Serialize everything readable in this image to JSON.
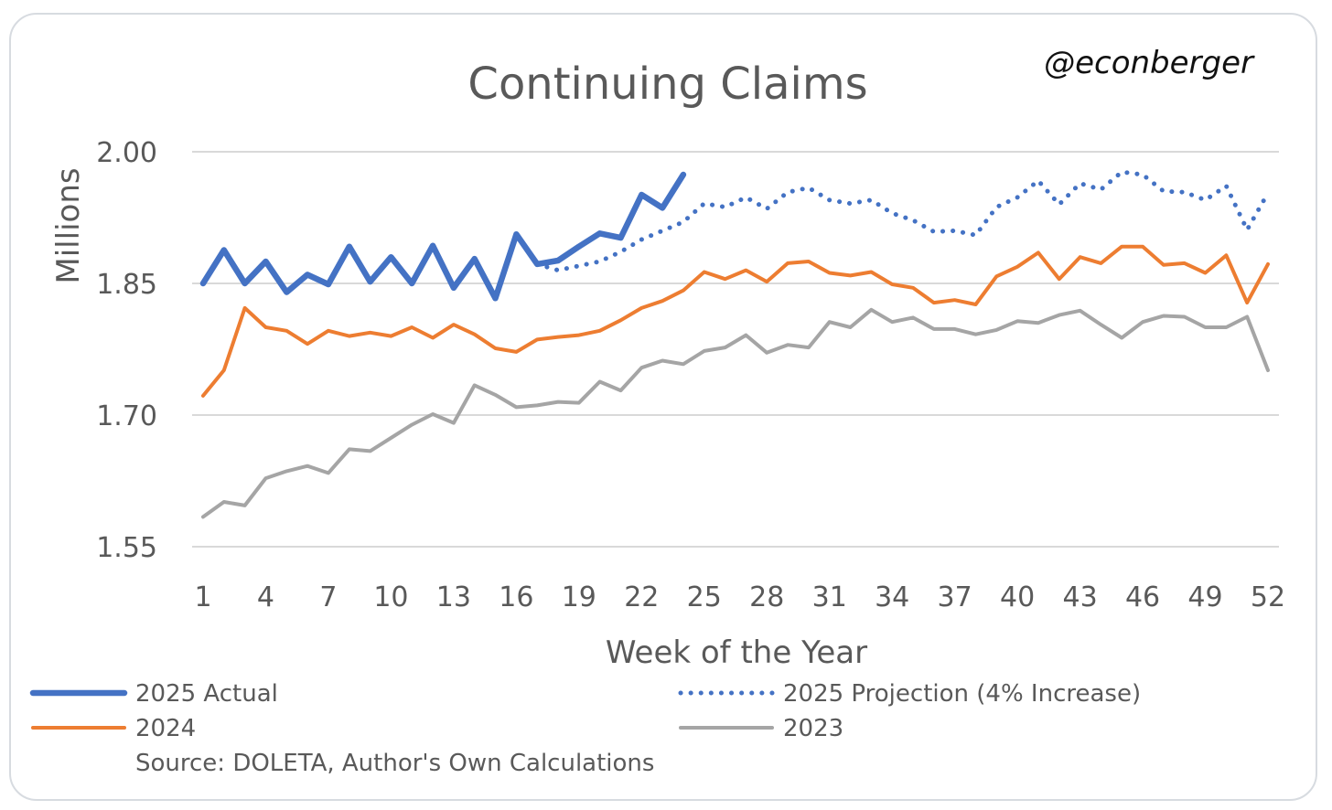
{
  "chart_data": {
    "type": "line",
    "title": "Continuing Claims",
    "watermark": "@econberger",
    "xlabel": "Week of the Year",
    "ylabel": "Millions",
    "xlim": [
      1,
      52
    ],
    "ylim": [
      1.55,
      2.0
    ],
    "yticks": [
      1.55,
      1.7,
      1.85,
      2.0
    ],
    "ytick_labels": [
      "1.55",
      "1.70",
      "1.85",
      "2.00"
    ],
    "xticks": [
      1,
      4,
      7,
      10,
      13,
      16,
      19,
      22,
      25,
      28,
      31,
      34,
      37,
      40,
      43,
      46,
      49,
      52
    ],
    "xtick_labels": [
      "1",
      "4",
      "7",
      "10",
      "13",
      "16",
      "19",
      "22",
      "25",
      "28",
      "31",
      "34",
      "37",
      "40",
      "43",
      "46",
      "49",
      "52"
    ],
    "grid": "horizontal",
    "legend_placement": "bottom",
    "source": "Source: DOLETA, Author's Own Calculations",
    "series": [
      {
        "name": "2025 Actual",
        "color": "#4472c4",
        "style": "solid-thick",
        "x": [
          1,
          2,
          3,
          4,
          5,
          6,
          7,
          8,
          9,
          10,
          11,
          12,
          13,
          14,
          15,
          16,
          17,
          18,
          19,
          20,
          21,
          22,
          23,
          24
        ],
        "values": [
          1.85,
          1.888,
          1.85,
          1.875,
          1.84,
          1.86,
          1.849,
          1.892,
          1.852,
          1.88,
          1.85,
          1.893,
          1.845,
          1.878,
          1.833,
          1.906,
          1.872,
          1.876,
          1.892,
          1.907,
          1.902,
          1.951,
          1.936,
          1.974
        ]
      },
      {
        "name": "2025 Projection (4% Increase)",
        "color": "#4472c4",
        "style": "dotted",
        "x": [
          17,
          18,
          19,
          20,
          21,
          22,
          23,
          24,
          25,
          26,
          27,
          28,
          29,
          30,
          31,
          32,
          33,
          34,
          35,
          36,
          37,
          38,
          39,
          40,
          41,
          42,
          43,
          44,
          45,
          46,
          47,
          48,
          49,
          50,
          51,
          52
        ],
        "values": [
          1.872,
          1.865,
          1.87,
          1.875,
          1.886,
          1.9,
          1.91,
          1.92,
          1.941,
          1.937,
          1.948,
          1.935,
          1.954,
          1.959,
          1.945,
          1.941,
          1.945,
          1.93,
          1.922,
          1.909,
          1.91,
          1.905,
          1.937,
          1.948,
          1.967,
          1.94,
          1.964,
          1.957,
          1.977,
          1.974,
          1.955,
          1.954,
          1.945,
          1.961,
          1.911,
          1.953
        ]
      },
      {
        "name": "2024",
        "color": "#ed7d31",
        "style": "solid",
        "x": [
          1,
          2,
          3,
          4,
          5,
          6,
          7,
          8,
          9,
          10,
          11,
          12,
          13,
          14,
          15,
          16,
          17,
          18,
          19,
          20,
          21,
          22,
          23,
          24,
          25,
          26,
          27,
          28,
          29,
          30,
          31,
          32,
          33,
          34,
          35,
          36,
          37,
          38,
          39,
          40,
          41,
          42,
          43,
          44,
          45,
          46,
          47,
          48,
          49,
          50,
          51,
          52
        ],
        "values": [
          1.722,
          1.751,
          1.822,
          1.8,
          1.796,
          1.781,
          1.796,
          1.79,
          1.794,
          1.79,
          1.8,
          1.788,
          1.803,
          1.792,
          1.776,
          1.772,
          1.786,
          1.789,
          1.791,
          1.796,
          1.808,
          1.822,
          1.83,
          1.842,
          1.863,
          1.855,
          1.865,
          1.852,
          1.873,
          1.875,
          1.862,
          1.859,
          1.863,
          1.849,
          1.845,
          1.828,
          1.831,
          1.826,
          1.858,
          1.869,
          1.885,
          1.855,
          1.88,
          1.873,
          1.892,
          1.892,
          1.871,
          1.873,
          1.862,
          1.882,
          1.828,
          1.872
        ]
      },
      {
        "name": "2023",
        "color": "#a5a5a5",
        "style": "solid",
        "x": [
          1,
          2,
          3,
          4,
          5,
          6,
          7,
          8,
          9,
          10,
          11,
          12,
          13,
          14,
          15,
          16,
          17,
          18,
          19,
          20,
          21,
          22,
          23,
          24,
          25,
          26,
          27,
          28,
          29,
          30,
          31,
          32,
          33,
          34,
          35,
          36,
          37,
          38,
          39,
          40,
          41,
          42,
          43,
          44,
          45,
          46,
          47,
          48,
          49,
          50,
          51,
          52
        ],
        "values": [
          1.584,
          1.601,
          1.597,
          1.628,
          1.636,
          1.642,
          1.634,
          1.661,
          1.659,
          1.674,
          1.689,
          1.701,
          1.691,
          1.734,
          1.723,
          1.709,
          1.711,
          1.715,
          1.714,
          1.738,
          1.728,
          1.754,
          1.762,
          1.758,
          1.773,
          1.777,
          1.791,
          1.771,
          1.78,
          1.777,
          1.806,
          1.8,
          1.82,
          1.806,
          1.811,
          1.798,
          1.798,
          1.792,
          1.797,
          1.807,
          1.805,
          1.814,
          1.819,
          1.803,
          1.788,
          1.806,
          1.813,
          1.812,
          1.8,
          1.8,
          1.812,
          1.751
        ]
      }
    ]
  }
}
